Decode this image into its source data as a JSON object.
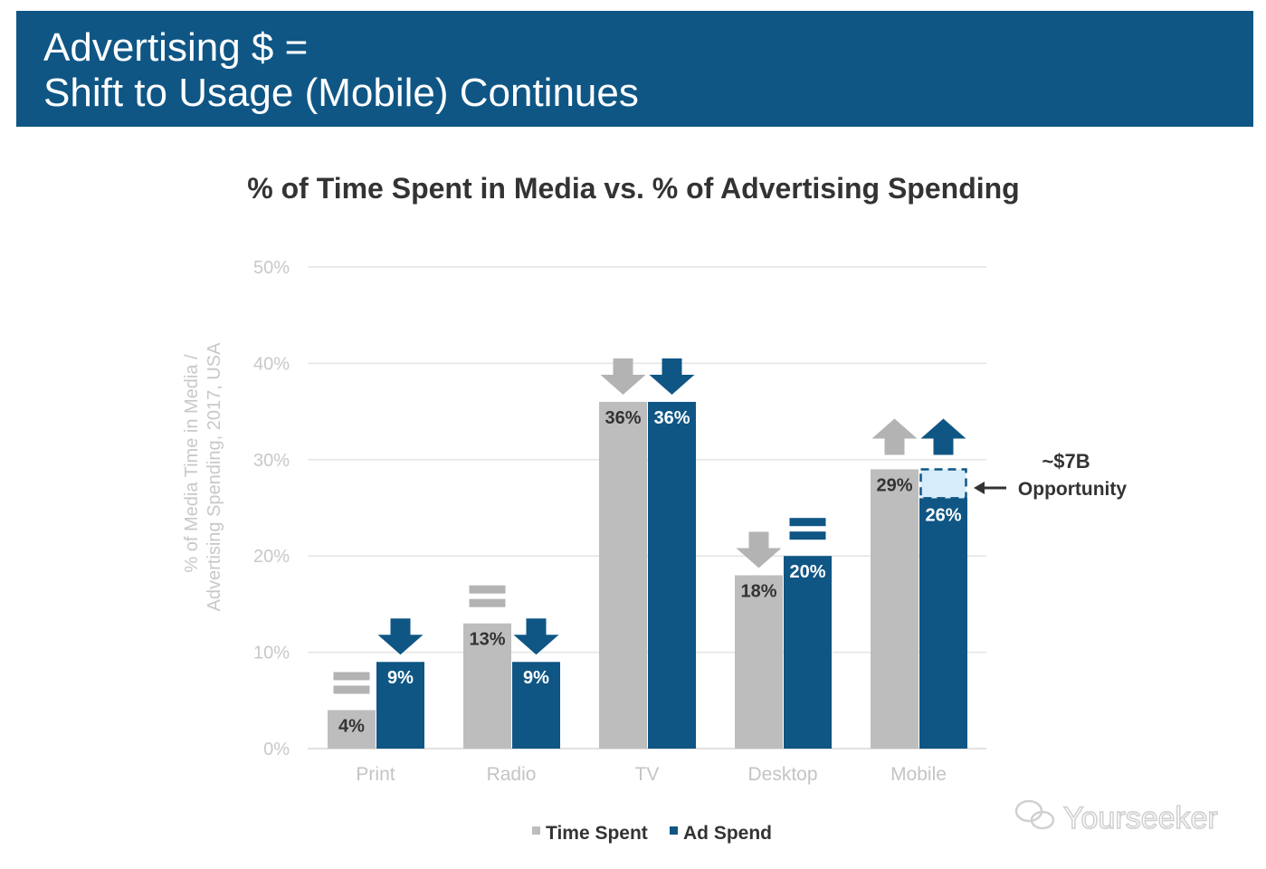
{
  "header": {
    "line1": "Advertising $ =",
    "line2": "Shift to Usage (Mobile) Continues"
  },
  "chart_data": {
    "type": "bar",
    "title": "% of Time Spent in Media vs. % of Advertising Spending",
    "ylabel_line1": "% of Media Time in Media /",
    "ylabel_line2": "Advertising Spending, 2017, USA",
    "ylim": [
      0,
      50
    ],
    "yticks": [
      "0%",
      "10%",
      "20%",
      "30%",
      "40%",
      "50%"
    ],
    "grid": true,
    "legend_position": "bottom",
    "categories": [
      "Print",
      "Radio",
      "TV",
      "Desktop",
      "Mobile"
    ],
    "series": [
      {
        "name": "Time Spent",
        "color": "#bdbdbd",
        "values": [
          4,
          13,
          36,
          18,
          29
        ],
        "labels": [
          "4%",
          "13%",
          "36%",
          "18%",
          "29%"
        ],
        "trend": [
          "equal",
          "equal",
          "down",
          "down",
          "up"
        ]
      },
      {
        "name": "Ad Spend",
        "color": "#0f5685",
        "values": [
          9,
          9,
          36,
          20,
          26
        ],
        "labels": [
          "9%",
          "9%",
          "36%",
          "20%",
          "26%"
        ],
        "trend": [
          "down",
          "down",
          "down",
          "equal",
          "up"
        ]
      }
    ],
    "annotation": {
      "category": "Mobile",
      "from": 26,
      "to": 29,
      "line1": "~$7B",
      "line2": "Opportunity",
      "fill": "#d6ecfa"
    }
  },
  "watermark": "Yourseeker"
}
